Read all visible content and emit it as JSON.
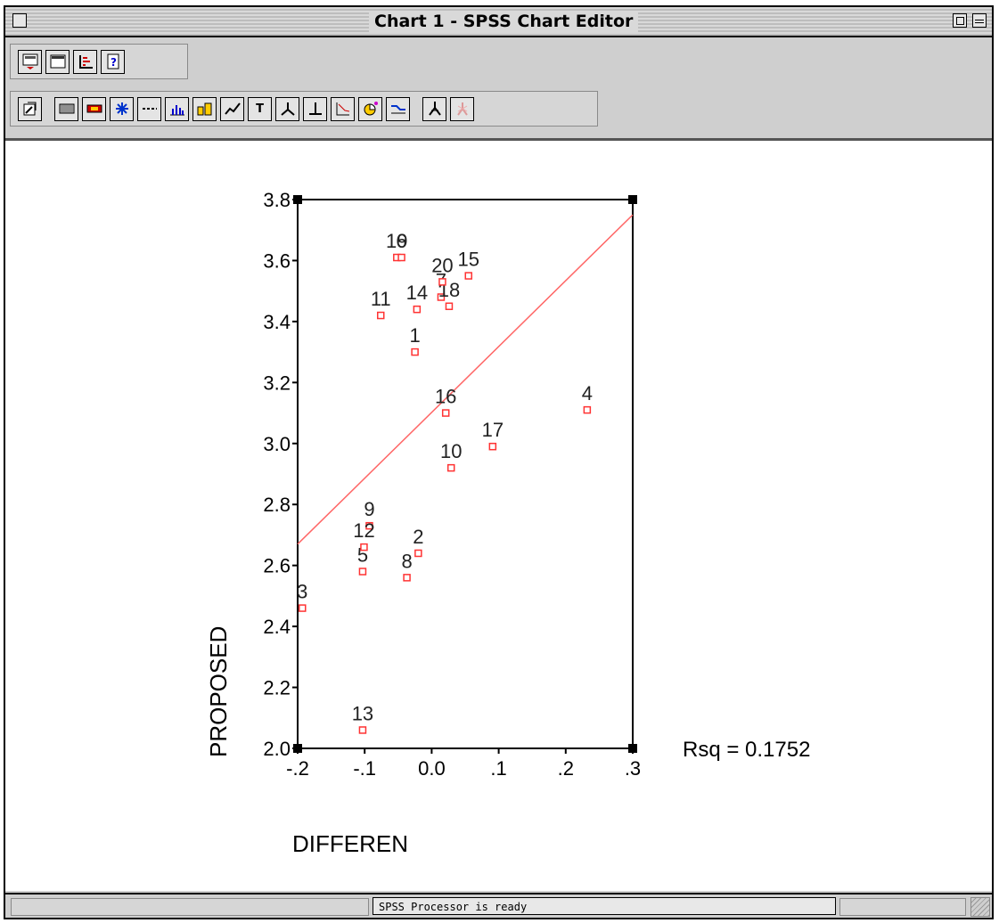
{
  "window": {
    "title": "Chart 1 - SPSS Chart Editor"
  },
  "toolbar": {
    "row1_icons": [
      "chart-gallery-icon",
      "data-grid-icon",
      "axis-icon",
      "help-icon"
    ],
    "row2_icons": [
      "select-icon",
      "fill-pattern-icon",
      "line-style-icon",
      "marker-icon",
      "line-icon",
      "bar-icon",
      "bar-3d-icon",
      "interpolation-icon",
      "text-icon",
      "axis-swap-icon",
      "reference-line-icon",
      "pie-explode-icon",
      "color-icon",
      "spike-icon",
      "point-id-icon",
      "point-spin-icon"
    ],
    "text_button_label": "T"
  },
  "status": {
    "text": "SPSS Processor  is ready"
  },
  "colors": {
    "marker": "#ff3333",
    "fit_line": "#ff6666",
    "axis": "#000000"
  },
  "chart_data": {
    "type": "scatter",
    "xlabel": "DIFFEREN",
    "ylabel": "PROPOSED",
    "xlim": [
      -0.2,
      0.3
    ],
    "ylim": [
      2.0,
      3.8
    ],
    "x_ticks": [
      "-.2",
      "-.1",
      "0.0",
      ".1",
      ".2",
      ".3"
    ],
    "y_ticks": [
      "2.0",
      "2.2",
      "2.4",
      "2.6",
      "2.8",
      "3.0",
      "3.2",
      "3.4",
      "3.6",
      "3.8"
    ],
    "annotation": "Rsq = 0.1752",
    "fit_line": {
      "x": [
        -0.2,
        0.3
      ],
      "y": [
        2.67,
        3.75
      ]
    },
    "points": [
      {
        "label": "1",
        "x": -0.025,
        "y": 3.3
      },
      {
        "label": "2",
        "x": -0.02,
        "y": 2.64
      },
      {
        "label": "3",
        "x": -0.193,
        "y": 2.46
      },
      {
        "label": "4",
        "x": 0.232,
        "y": 3.11
      },
      {
        "label": "5",
        "x": -0.103,
        "y": 2.58
      },
      {
        "label": "7",
        "x": 0.014,
        "y": 3.48
      },
      {
        "label": "8",
        "x": -0.037,
        "y": 2.56
      },
      {
        "label": "9",
        "x": -0.093,
        "y": 2.73
      },
      {
        "label": "10",
        "x": 0.029,
        "y": 2.92
      },
      {
        "label": "11",
        "x": -0.076,
        "y": 3.42
      },
      {
        "label": "12",
        "x": -0.101,
        "y": 2.66
      },
      {
        "label": "13",
        "x": -0.103,
        "y": 2.06
      },
      {
        "label": "14",
        "x": -0.022,
        "y": 3.44
      },
      {
        "label": "15",
        "x": 0.055,
        "y": 3.55
      },
      {
        "label": "16",
        "x": 0.021,
        "y": 3.1
      },
      {
        "label": "17",
        "x": 0.091,
        "y": 2.99
      },
      {
        "label": "18",
        "x": 0.026,
        "y": 3.45
      },
      {
        "label": "19",
        "x": -0.052,
        "y": 3.61
      },
      {
        "label": "6",
        "x": -0.045,
        "y": 3.61
      },
      {
        "label": "20",
        "x": 0.016,
        "y": 3.53
      }
    ]
  }
}
